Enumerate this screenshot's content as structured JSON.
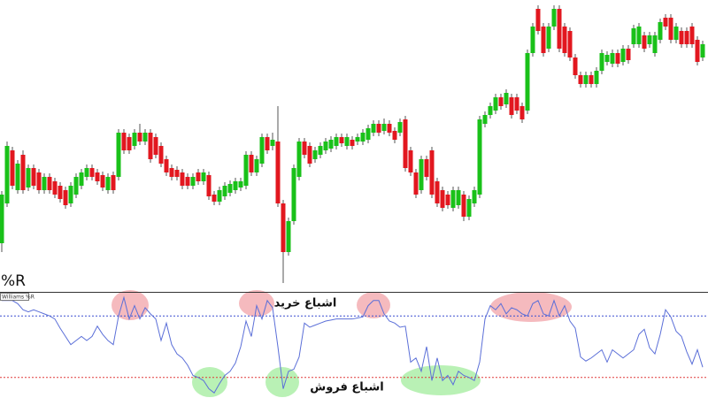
{
  "chart_data": [
    {
      "type": "candlestick",
      "ylim": [
        0,
        330
      ],
      "up_color": "#19c119",
      "down_color": "#e2171f",
      "wick_color": "#555555",
      "open": [
        55,
        100,
        160,
        115,
        155,
        118,
        140,
        135,
        115,
        130,
        125,
        120,
        115,
        100,
        110,
        120,
        130,
        140,
        135,
        132,
        115,
        132,
        130,
        180,
        175,
        165,
        180,
        170,
        180,
        175,
        165,
        150,
        140,
        138,
        135,
        130,
        120,
        135,
        125,
        132,
        110,
        102,
        108,
        112,
        115,
        118,
        120,
        155,
        135,
        145,
        175,
        165,
        170,
        100,
        45,
        80,
        130,
        170,
        165,
        150,
        155,
        160,
        162,
        165,
        175,
        165,
        172,
        170,
        170,
        172,
        180,
        190,
        182,
        190,
        182,
        180,
        195,
        160,
        135,
        115,
        150,
        160,
        125,
        115,
        110,
        95,
        98,
        110,
        85,
        100,
        110,
        190,
        200,
        205,
        220,
        212,
        220,
        220,
        210,
        205,
        270,
        320,
        300,
        275,
        300,
        320,
        300,
        295,
        265,
        245,
        235,
        245,
        235,
        250,
        260,
        258,
        270,
        260,
        275,
        280,
        280,
        290,
        280,
        270,
        285,
        310,
        310,
        285,
        295,
        295,
        300,
        285,
        265
      ],
      "high": [
        114,
        170,
        164,
        149,
        160,
        144,
        144,
        139,
        134,
        134,
        129,
        124,
        119,
        124,
        134,
        139,
        144,
        144,
        139,
        136,
        134,
        136,
        184,
        184,
        179,
        184,
        190,
        184,
        184,
        179,
        169,
        154,
        144,
        142,
        139,
        134,
        134,
        139,
        139,
        136,
        114,
        119,
        124,
        126,
        129,
        129,
        159,
        159,
        154,
        179,
        179,
        180,
        210,
        104,
        84,
        144,
        174,
        174,
        169,
        164,
        169,
        174,
        176,
        179,
        179,
        179,
        176,
        179,
        184,
        189,
        194,
        194,
        196,
        194,
        186,
        196,
        199,
        164,
        139,
        154,
        154,
        164,
        129,
        119,
        114,
        119,
        119,
        114,
        109,
        119,
        199,
        204,
        214,
        224,
        224,
        229,
        224,
        224,
        214,
        274,
        304,
        324,
        304,
        304,
        324,
        324,
        304,
        299,
        269,
        249,
        249,
        249,
        254,
        274,
        272,
        274,
        274,
        279,
        279,
        302,
        304,
        294,
        294,
        294,
        309,
        314,
        314,
        304,
        299,
        299,
        304,
        289,
        284
      ],
      "low": [
        45,
        96,
        116,
        111,
        111,
        114,
        116,
        111,
        111,
        111,
        106,
        101,
        94,
        96,
        106,
        116,
        126,
        126,
        121,
        114,
        111,
        111,
        126,
        156,
        156,
        161,
        166,
        166,
        146,
        151,
        141,
        131,
        126,
        126,
        116,
        116,
        116,
        121,
        121,
        104,
        98,
        98,
        104,
        108,
        111,
        114,
        116,
        131,
        131,
        141,
        156,
        160,
        96,
        10,
        41,
        76,
        126,
        151,
        141,
        146,
        151,
        156,
        158,
        161,
        164,
        161,
        161,
        166,
        166,
        168,
        176,
        176,
        178,
        176,
        168,
        176,
        136,
        131,
        106,
        111,
        126,
        106,
        96,
        91,
        94,
        91,
        94,
        80,
        81,
        96,
        106,
        186,
        196,
        201,
        206,
        208,
        196,
        201,
        191,
        201,
        266,
        291,
        266,
        271,
        296,
        271,
        266,
        261,
        241,
        231,
        231,
        231,
        231,
        246,
        256,
        254,
        254,
        256,
        258,
        276,
        276,
        271,
        276,
        266,
        281,
        296,
        281,
        281,
        276,
        276,
        276,
        256,
        261
      ],
      "close": [
        110,
        165,
        120,
        145,
        115,
        140,
        120,
        115,
        130,
        115,
        110,
        105,
        98,
        120,
        130,
        135,
        140,
        130,
        125,
        118,
        130,
        115,
        180,
        160,
        160,
        180,
        170,
        180,
        150,
        155,
        145,
        135,
        130,
        130,
        120,
        120,
        130,
        125,
        135,
        108,
        102,
        115,
        120,
        122,
        125,
        125,
        155,
        135,
        150,
        175,
        160,
        172,
        100,
        45,
        80,
        140,
        170,
        155,
        145,
        160,
        165,
        170,
        172,
        175,
        168,
        175,
        165,
        175,
        180,
        185,
        190,
        180,
        190,
        180,
        172,
        192,
        140,
        135,
        110,
        150,
        130,
        110,
        100,
        95,
        98,
        115,
        115,
        85,
        105,
        115,
        195,
        200,
        210,
        220,
        210,
        225,
        200,
        205,
        195,
        270,
        300,
        295,
        270,
        300,
        320,
        275,
        270,
        265,
        245,
        235,
        245,
        235,
        250,
        270,
        268,
        270,
        258,
        275,
        262,
        298,
        300,
        275,
        290,
        290,
        305,
        300,
        285,
        300,
        280,
        280,
        280,
        260,
        280
      ]
    },
    {
      "type": "line",
      "title": "%R",
      "ylim": [
        -100,
        0
      ],
      "levels": [
        -20,
        -80
      ],
      "level_colors": [
        "#3a4fd0",
        "#e03a3a"
      ],
      "series": [
        {
          "name": "Williams %R",
          "color": "#5b6fd8",
          "values": [
            -5,
            -5,
            -5,
            -8,
            -14,
            -16,
            -14,
            -16,
            -18,
            -20,
            -23,
            -32,
            -40,
            -48,
            -44,
            -40,
            -44,
            -40,
            -30,
            -38,
            -44,
            -48,
            -20,
            -2,
            -23,
            -10,
            -23,
            -12,
            -18,
            -23,
            -44,
            -27,
            -48,
            -57,
            -61,
            -68,
            -78,
            -80,
            -83,
            -91,
            -95,
            -86,
            -78,
            -74,
            -66,
            -50,
            -25,
            -40,
            -10,
            -23,
            -5,
            -12,
            -50,
            -91,
            -74,
            -72,
            -60,
            -27,
            -31,
            -29,
            -27,
            -25,
            -24,
            -23,
            -23,
            -23,
            -23,
            -22,
            -21,
            -10,
            -5,
            -5,
            -18,
            -25,
            -27,
            -31,
            -30,
            -65,
            -61,
            -74,
            -50,
            -83,
            -61,
            -83,
            -78,
            -87,
            -74,
            -78,
            -80,
            -83,
            -65,
            -23,
            -10,
            -14,
            -8,
            -18,
            -12,
            -14,
            -18,
            -20,
            -8,
            -5,
            -18,
            -20,
            -5,
            -20,
            -10,
            -25,
            -32,
            -60,
            -64,
            -61,
            -57,
            -53,
            -65,
            -53,
            -57,
            -61,
            -57,
            -53,
            -38,
            -33,
            -51,
            -57,
            -38,
            -14,
            -21,
            -35,
            -40,
            -55,
            -67,
            -53,
            -70
          ]
        }
      ],
      "annotations": [
        "اشباع خرید",
        "اشباع فروش"
      ]
    }
  ]
}
